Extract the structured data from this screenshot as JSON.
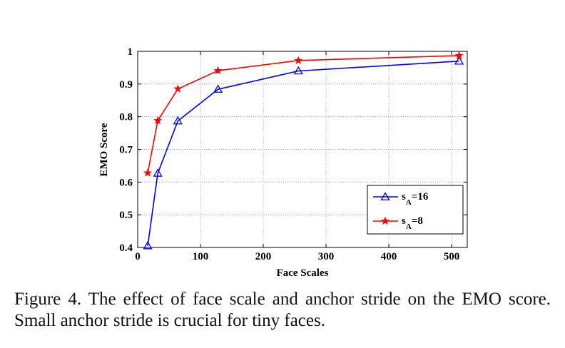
{
  "chart_data": {
    "type": "line",
    "xlabel": "Face Scales",
    "ylabel": "EMO Score",
    "xlim": [
      0,
      525
    ],
    "ylim": [
      0.4,
      1.0
    ],
    "x_ticks": [
      "0",
      "100",
      "200",
      "300",
      "400",
      "500"
    ],
    "y_ticks": [
      "0.4",
      "0.5",
      "0.6",
      "0.7",
      "0.8",
      "0.9",
      "1"
    ],
    "grid": true,
    "legend_position": "bottom-right",
    "series": [
      {
        "name": "s_A=16",
        "label_main": "s",
        "label_sub": "A",
        "label_tail": "=16",
        "color": "#0000ff",
        "marker": "triangle",
        "x": [
          16,
          32,
          64,
          128,
          256,
          512
        ],
        "y": [
          0.405,
          0.627,
          0.787,
          0.884,
          0.94,
          0.97
        ]
      },
      {
        "name": "s_A=8",
        "label_main": "s",
        "label_sub": "A",
        "label_tail": "=8",
        "color": "#ff0000",
        "marker": "star",
        "x": [
          16,
          32,
          64,
          128,
          256,
          512
        ],
        "y": [
          0.628,
          0.788,
          0.885,
          0.941,
          0.972,
          0.987
        ]
      }
    ]
  },
  "caption": "Figure 4. The effect of face scale and anchor stride on the EMO score. Small anchor stride is crucial for tiny faces."
}
